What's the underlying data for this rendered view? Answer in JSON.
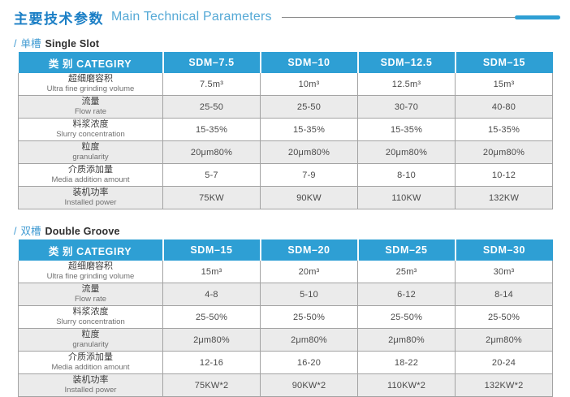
{
  "page": {
    "title_zh": "主要技术参数",
    "title_en": "Main Technical Parameters"
  },
  "sections": [
    {
      "slash": "/",
      "label_zh": "单槽",
      "label_en": "Single Slot"
    },
    {
      "slash": "/",
      "label_zh": "双槽",
      "label_en": "Double Groove"
    }
  ],
  "colors": {
    "header_blue": "#2e9fd4",
    "title_blue": "#1a7ec5",
    "title_light_blue": "#55a9d6",
    "alt_row_gray": "#ebebeb",
    "border_gray": "#a3a3a3"
  },
  "tables": [
    {
      "header": [
        "类 别 CATEGIRY",
        "SDM–7.5",
        "SDM–10",
        "SDM–12.5",
        "SDM–15"
      ],
      "rows": [
        {
          "label_zh": "超细磨容积",
          "label_en": "Ultra fine grinding volume",
          "values": [
            "7.5m³",
            "10m³",
            "12.5m³",
            "15m³"
          ]
        },
        {
          "label_zh": "流量",
          "label_en": "Flow rate",
          "values": [
            "25-50",
            "25-50",
            "30-70",
            "40-80"
          ]
        },
        {
          "label_zh": "料浆浓度",
          "label_en": "Slurry concentration",
          "values": [
            "15-35%",
            "15-35%",
            "15-35%",
            "15-35%"
          ]
        },
        {
          "label_zh": "粒度",
          "label_en": "granularity",
          "values": [
            "20μm80%",
            "20μm80%",
            "20μm80%",
            "20μm80%"
          ]
        },
        {
          "label_zh": "介质添加量",
          "label_en": "Media addition amount",
          "values": [
            "5-7",
            "7-9",
            "8-10",
            "10-12"
          ]
        },
        {
          "label_zh": "装机功率",
          "label_en": "Installed power",
          "values": [
            "75KW",
            "90KW",
            "110KW",
            "132KW"
          ]
        }
      ]
    },
    {
      "header": [
        "类 别 CATEGIRY",
        "SDM–15",
        "SDM–20",
        "SDM–25",
        "SDM–30"
      ],
      "rows": [
        {
          "label_zh": "超细磨容积",
          "label_en": "Ultra fine grinding volume",
          "values": [
            "15m³",
            "20m³",
            "25m³",
            "30m³"
          ]
        },
        {
          "label_zh": "流量",
          "label_en": "Flow rate",
          "values": [
            "4-8",
            "5-10",
            "6-12",
            "8-14"
          ]
        },
        {
          "label_zh": "料浆浓度",
          "label_en": "Slurry concentration",
          "values": [
            "25-50%",
            "25-50%",
            "25-50%",
            "25-50%"
          ]
        },
        {
          "label_zh": "粒度",
          "label_en": "granularity",
          "values": [
            "2μm80%",
            "2μm80%",
            "2μm80%",
            "2μm80%"
          ]
        },
        {
          "label_zh": "介质添加量",
          "label_en": "Media addition amount",
          "values": [
            "12-16",
            "16-20",
            "18-22",
            "20-24"
          ]
        },
        {
          "label_zh": "装机功率",
          "label_en": "Installed power",
          "values": [
            "75KW*2",
            "90KW*2",
            "110KW*2",
            "132KW*2"
          ]
        }
      ]
    }
  ]
}
